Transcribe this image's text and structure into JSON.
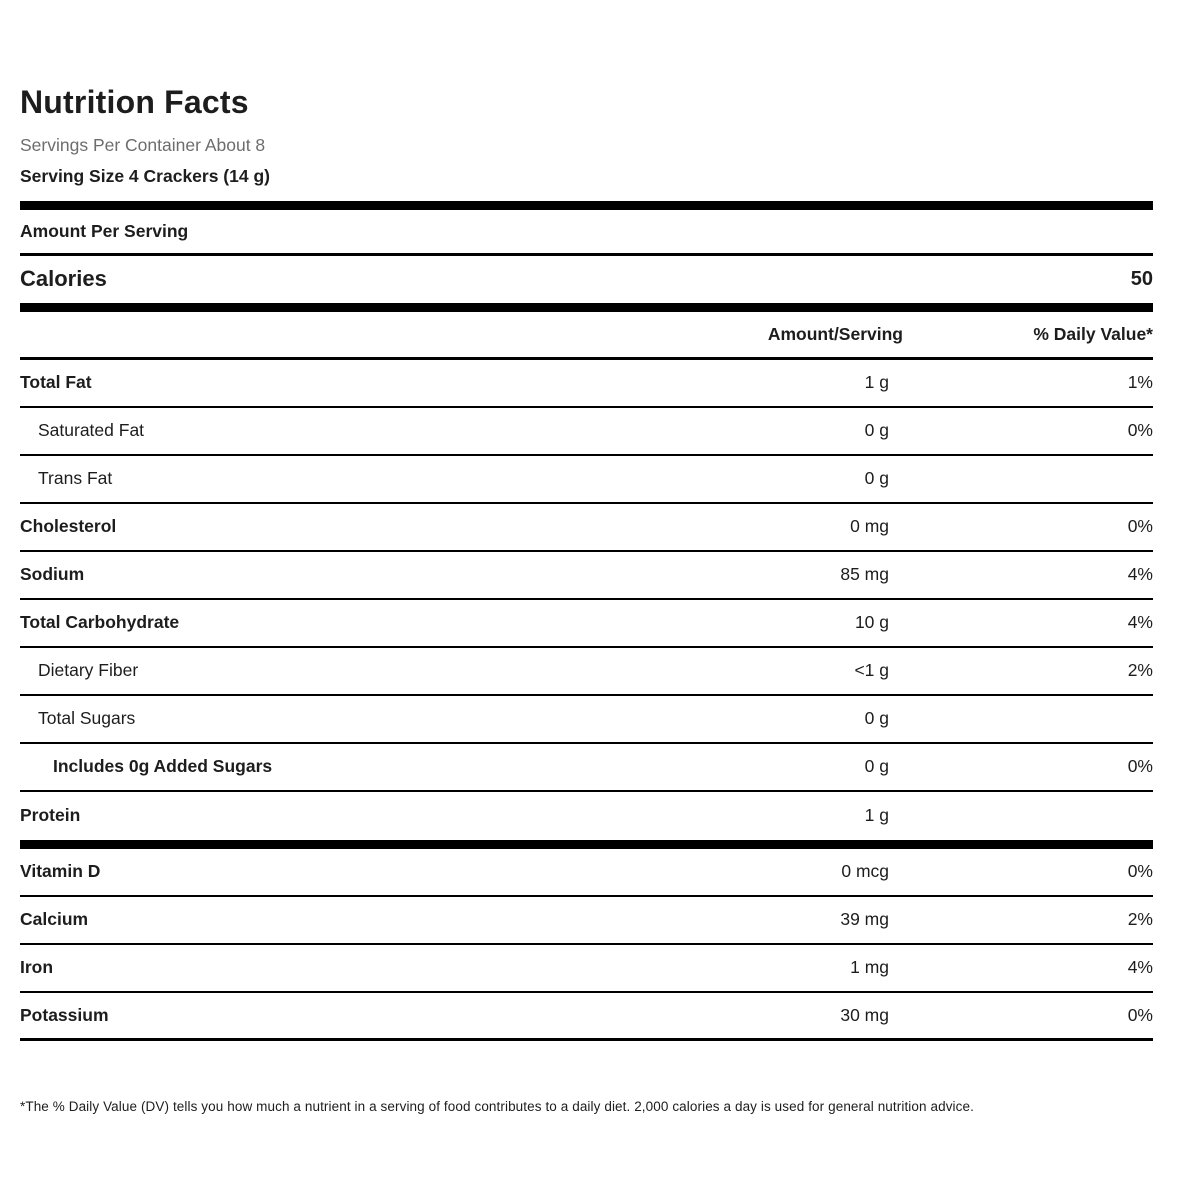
{
  "label": {
    "title": "Nutrition Facts",
    "servings_per_container": "Servings Per Container About 8",
    "serving_size": "Serving Size 4 Crackers (14 g)",
    "amount_per_serving": "Amount Per Serving",
    "calories_label": "Calories",
    "calories_value": "50",
    "col_amount": "Amount/Serving",
    "col_daily_value": "% Daily Value*",
    "footnote": "*The % Daily Value (DV) tells you how much a nutrient in a serving of food contributes to a daily diet. 2,000 calories a day is used for general nutrition advice."
  },
  "rows": [
    {
      "label": "Total Fat",
      "amount": "1 g",
      "dv": "1%"
    },
    {
      "label": "Saturated Fat",
      "amount": "0 g",
      "dv": "0%"
    },
    {
      "label": "Trans Fat",
      "amount": "0 g",
      "dv": ""
    },
    {
      "label": "Cholesterol",
      "amount": "0 mg",
      "dv": "0%"
    },
    {
      "label": "Sodium",
      "amount": "85 mg",
      "dv": "4%"
    },
    {
      "label": "Total Carbohydrate",
      "amount": "10 g",
      "dv": "4%"
    },
    {
      "label": "Dietary Fiber",
      "amount": "<1 g",
      "dv": "2%"
    },
    {
      "label": "Total Sugars",
      "amount": "0 g",
      "dv": ""
    },
    {
      "label": "Includes 0g Added Sugars",
      "amount": "0 g",
      "dv": "0%"
    },
    {
      "label": "Protein",
      "amount": "1 g",
      "dv": ""
    },
    {
      "label": "Vitamin D",
      "amount": "0 mcg",
      "dv": "0%"
    },
    {
      "label": "Calcium",
      "amount": "39 mg",
      "dv": "2%"
    },
    {
      "label": "Iron",
      "amount": "1 mg",
      "dv": "4%"
    },
    {
      "label": "Potassium",
      "amount": "30 mg",
      "dv": "0%"
    }
  ],
  "colors": {
    "text": "#1d1d1d",
    "muted_text": "#6d6d6d",
    "rule": "#000000",
    "background": "#ffffff"
  }
}
